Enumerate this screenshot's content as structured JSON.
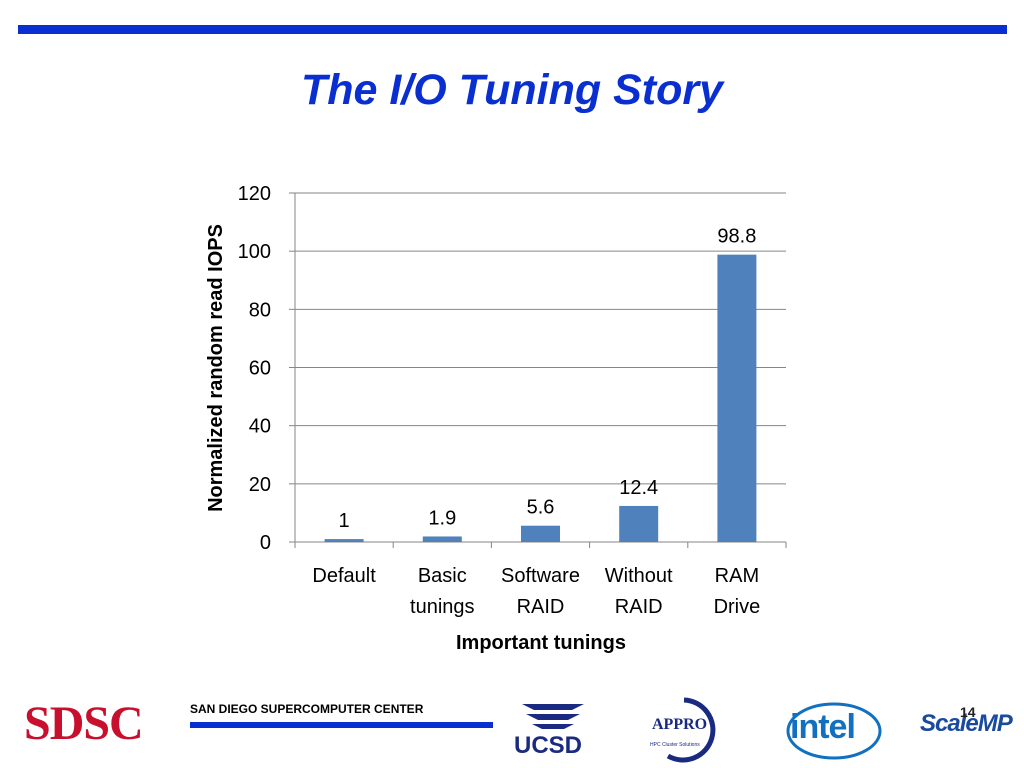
{
  "slide": {
    "title": "The I/O Tuning Story",
    "page_number": "14"
  },
  "chart_data": {
    "type": "bar",
    "categories": [
      [
        "Default"
      ],
      [
        "Basic",
        "tunings"
      ],
      [
        "Software",
        "RAID"
      ],
      [
        "Without",
        "RAID"
      ],
      [
        "RAM",
        "Drive"
      ]
    ],
    "values": [
      1,
      1.9,
      5.6,
      12.4,
      98.8
    ],
    "data_labels": [
      "1",
      "1.9",
      "5.6",
      "12.4",
      "98.8"
    ],
    "xlabel": "Important tunings",
    "ylabel": "Normalized random read IOPS",
    "ylim": [
      0,
      120
    ],
    "yticks": [
      0,
      20,
      40,
      60,
      80,
      100,
      120
    ],
    "grid": true,
    "legend": "none",
    "bar_color": "#4f81bd"
  },
  "footer": {
    "sdsc_logo_text": "SDSC",
    "center_name": "SAN DIEGO SUPERCOMPUTER CENTER",
    "ucsd_logo_text": "UCSD",
    "appro_logo_text": "APPRO",
    "appro_tagline": "HPC Cluster Solutions",
    "intel_logo_text": "intel",
    "scalemp_logo_text": "ScaleMP",
    "brand_blue": "#0a2fd0",
    "sdsc_red": "#c8102e"
  }
}
